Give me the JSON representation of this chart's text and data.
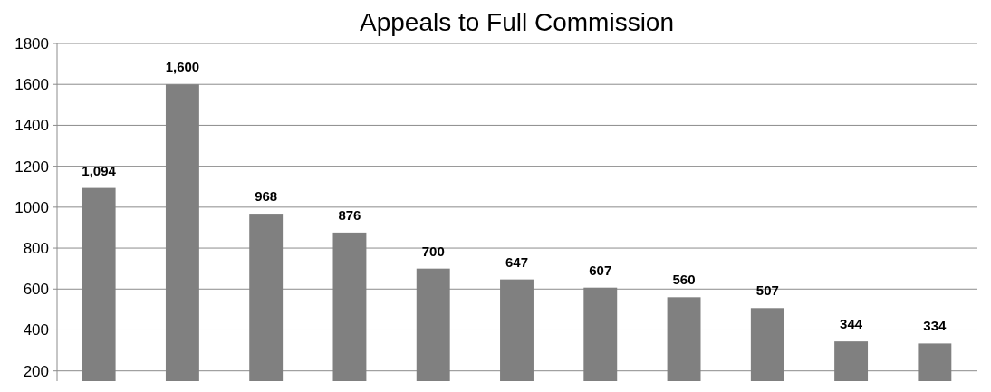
{
  "chart_data": {
    "type": "bar",
    "title": "Appeals to Full Commission",
    "categories": [
      null,
      null,
      null,
      null,
      null,
      null,
      null,
      null,
      null,
      null,
      null
    ],
    "values": [
      1094,
      1600,
      968,
      876,
      700,
      647,
      607,
      560,
      507,
      344,
      334
    ],
    "value_labels": [
      "1,094",
      "1,600",
      "968",
      "876",
      "700",
      "647",
      "607",
      "560",
      "507",
      "344",
      "334"
    ],
    "color": "#808080",
    "ylim": [
      150,
      1800
    ],
    "yticks": [
      200,
      400,
      600,
      800,
      1000,
      1200,
      1400,
      1600,
      1800
    ],
    "grid": "y"
  }
}
